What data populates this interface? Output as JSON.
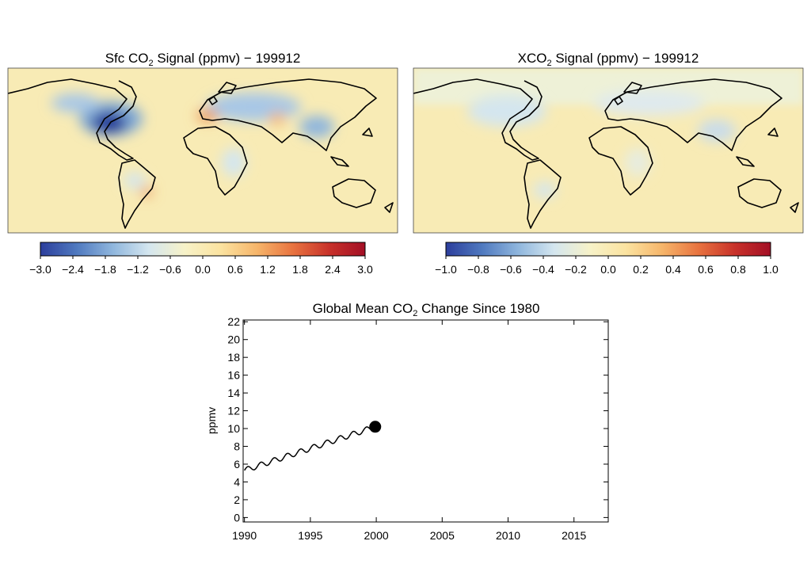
{
  "panels": {
    "sfc": {
      "title_main": "Sfc CO",
      "title_sub": "2",
      "title_rest": " Signal (ppmv) − 199912",
      "colorbar_ticks": [
        "−3.0",
        "−2.4",
        "−1.8",
        "−1.2",
        "−0.6",
        "0.0",
        "0.6",
        "1.2",
        "1.8",
        "2.4",
        "3.0"
      ]
    },
    "xco2": {
      "title_main": "XCO",
      "title_sub": "2",
      "title_rest": " Signal (ppmv) − 199912",
      "colorbar_ticks": [
        "−1.0",
        "−0.8",
        "−0.6",
        "−0.4",
        "−0.2",
        "0.0",
        "0.2",
        "0.4",
        "0.6",
        "0.8",
        "1.0"
      ]
    }
  },
  "colorbar_colors": [
    "#2c3e9c",
    "#4f79bf",
    "#8fb6dd",
    "#d4e6ef",
    "#f7f2c8",
    "#fbe3a0",
    "#f6b56a",
    "#e8733f",
    "#c8322a",
    "#a30f25"
  ],
  "map_colors": {
    "ocean": "#f8ebb5",
    "land": "#f4e2a6",
    "outline": "#000000",
    "sfc_low": "#223b98",
    "sfc_mid": "#7fa9d6",
    "sfc_high": "#ec9a5a",
    "xco2_low": "#a8c7e6"
  },
  "chart_data": {
    "type": "line",
    "title_main": "Global Mean CO",
    "title_sub": "2",
    "title_rest": " Change Since 1980",
    "ylabel": "ppmv",
    "xlim": [
      1989.9,
      2017.6
    ],
    "ylim": [
      -0.5,
      22.2
    ],
    "x_ticks": [
      1990,
      1995,
      2000,
      2005,
      2010,
      2015
    ],
    "y_ticks": [
      0,
      2,
      4,
      6,
      8,
      10,
      12,
      14,
      16,
      18,
      20,
      22
    ],
    "series": [
      {
        "x_start": 1990.0,
        "x_end": 1999.92,
        "y_start": 5.3,
        "y_end": 10.2,
        "seasonal_amplitude": 0.3
      }
    ],
    "marker": {
      "x": 1999.92,
      "y": 10.2
    }
  }
}
